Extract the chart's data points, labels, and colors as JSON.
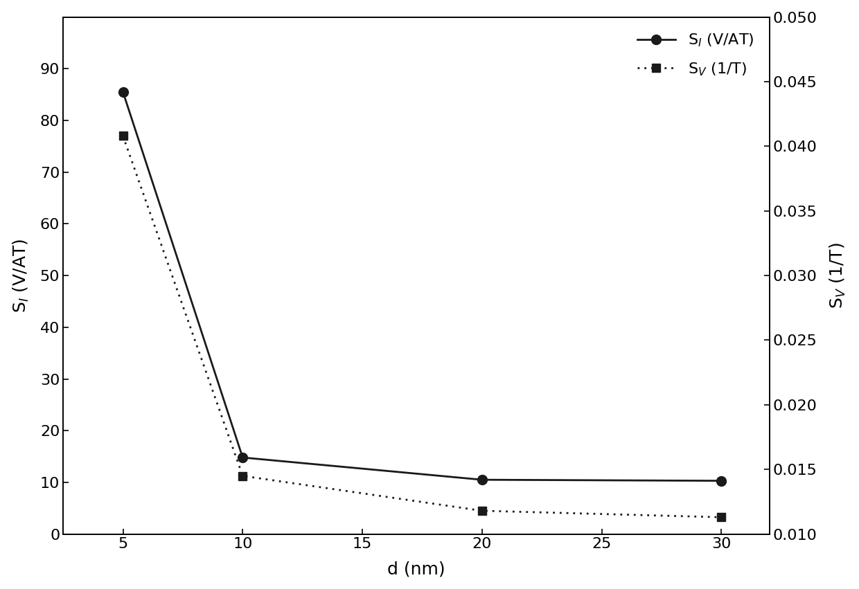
{
  "x": [
    5,
    10,
    20,
    30
  ],
  "SI": [
    85.5,
    14.8,
    10.5,
    10.3
  ],
  "SV": [
    0.0408,
    0.0145,
    0.0118,
    0.0113
  ],
  "xlabel": "d (nm)",
  "ylabel_left": "S$_{I}$ (V/AT)",
  "ylabel_right": "S$_{V}$ (1/T)",
  "xlim": [
    2.5,
    32
  ],
  "ylim_left": [
    0,
    100
  ],
  "ylim_right": [
    0.01,
    0.05
  ],
  "xticks": [
    5,
    10,
    15,
    20,
    25,
    30
  ],
  "yticks_left": [
    0,
    10,
    20,
    30,
    40,
    50,
    60,
    70,
    80,
    90
  ],
  "yticks_right": [
    0.01,
    0.015,
    0.02,
    0.025,
    0.03,
    0.035,
    0.04,
    0.045,
    0.05
  ],
  "legend_SI": "S$_{I}$ (V/AT)",
  "legend_SV": "S$_{V}$ (1/T)",
  "line_color": "#1a1a1a",
  "bg_color": "#ffffff",
  "fontsize": 18,
  "tick_fontsize": 16,
  "legend_fontsize": 16,
  "linewidth": 2.0,
  "marker_size_circle": 10,
  "marker_size_square": 9
}
